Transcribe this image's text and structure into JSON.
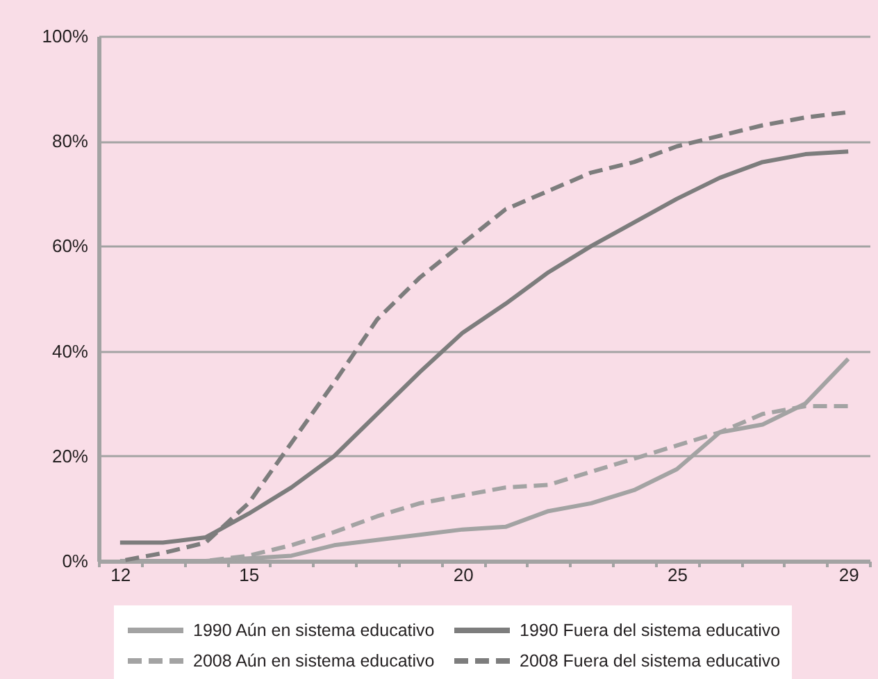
{
  "chart_data": {
    "type": "line",
    "x": [
      12,
      13,
      14,
      15,
      16,
      17,
      18,
      19,
      20,
      21,
      22,
      23,
      24,
      25,
      26,
      27,
      28,
      29
    ],
    "xlim": [
      11.5,
      29.5
    ],
    "xticks": [
      {
        "value": 11.5,
        "label": null
      },
      12,
      {
        "value": 12.5,
        "label": null
      },
      {
        "value": 13.5,
        "label": null
      },
      {
        "value": 14.5,
        "label": null
      },
      15,
      {
        "value": 15.5,
        "label": null
      },
      {
        "value": 16.5,
        "label": null
      },
      {
        "value": 17.5,
        "label": null
      },
      {
        "value": 18.5,
        "label": null
      },
      {
        "value": 19.5,
        "label": null
      },
      20,
      {
        "value": 20.5,
        "label": null
      },
      {
        "value": 21.5,
        "label": null
      },
      {
        "value": 22.5,
        "label": null
      },
      {
        "value": 23.5,
        "label": null
      },
      {
        "value": 24.5,
        "label": null
      },
      25,
      {
        "value": 25.5,
        "label": null
      },
      {
        "value": 26.5,
        "label": null
      },
      {
        "value": 27.5,
        "label": null
      },
      {
        "value": 28.5,
        "label": null
      },
      29,
      {
        "value": 29.5,
        "label": null
      }
    ],
    "ylim": [
      0,
      100
    ],
    "yticks": [
      {
        "value": 0,
        "label": "0%"
      },
      {
        "value": 20,
        "label": "20%"
      },
      {
        "value": 40,
        "label": "40%"
      },
      {
        "value": 60,
        "label": "60%"
      },
      {
        "value": 80,
        "label": "80%"
      },
      {
        "value": 100,
        "label": "100%"
      }
    ],
    "grid": "y",
    "legend": "bottom",
    "series": [
      {
        "name": "1990 Aún en sistema educativo",
        "color": "#a3a3a3",
        "line_style": "solid",
        "values": [
          0,
          0,
          0,
          0.5,
          1,
          3,
          4,
          5,
          6,
          6.5,
          9.5,
          11,
          13.5,
          17.5,
          24.5,
          26,
          30,
          38.5
        ]
      },
      {
        "name": "1990 Fuera del sistema educativo",
        "color": "#7d7d7d",
        "line_style": "solid",
        "values": [
          3.5,
          3.5,
          4.5,
          9,
          14,
          20,
          28,
          36,
          43.5,
          49,
          55,
          60,
          64.5,
          69,
          73,
          76,
          77.5,
          78
        ]
      },
      {
        "name": "2008 Aún en sistema educativo",
        "color": "#a3a3a3",
        "line_style": "dashed",
        "values": [
          0,
          0,
          0,
          1,
          3,
          5.5,
          8.5,
          11,
          12.5,
          14,
          14.5,
          17,
          19.5,
          22,
          24.5,
          28,
          29.5,
          29.5
        ]
      },
      {
        "name": "2008 Fuera del sistema educativo",
        "color": "#7d7d7d",
        "line_style": "dashed",
        "values": [
          0,
          1.5,
          3.5,
          11,
          22.5,
          34,
          46,
          54,
          60.5,
          67,
          70.5,
          74,
          76,
          79,
          81,
          83,
          84.5,
          85.5
        ]
      }
    ]
  }
}
